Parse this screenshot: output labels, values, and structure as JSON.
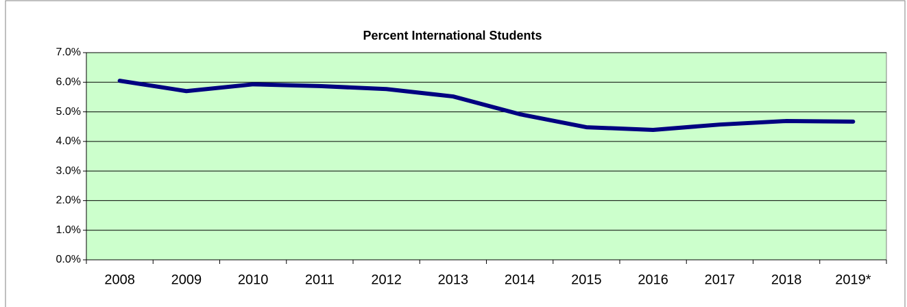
{
  "chart_data": {
    "type": "line",
    "title": "Percent International Students",
    "categories": [
      "2008",
      "2009",
      "2010",
      "2011",
      "2012",
      "2013",
      "2014",
      "2015",
      "2016",
      "2017",
      "2018",
      "2019*"
    ],
    "series": [
      {
        "name": "Percent International Students",
        "color": "#000080",
        "values": [
          6.05,
          5.7,
          5.93,
          5.87,
          5.77,
          5.52,
          4.92,
          4.48,
          4.39,
          4.57,
          4.69,
          4.67
        ]
      }
    ],
    "ylim": [
      0,
      7
    ],
    "yticks": [
      {
        "value": 0,
        "label": "0.0%"
      },
      {
        "value": 1,
        "label": "1.0%"
      },
      {
        "value": 2,
        "label": "2.0%"
      },
      {
        "value": 3,
        "label": "3.0%"
      },
      {
        "value": 4,
        "label": "4.0%"
      },
      {
        "value": 5,
        "label": "5.0%"
      },
      {
        "value": 6,
        "label": "6.0%"
      },
      {
        "value": 7,
        "label": "7.0%"
      }
    ],
    "grid": true,
    "plot_background": "#ccffcc"
  }
}
